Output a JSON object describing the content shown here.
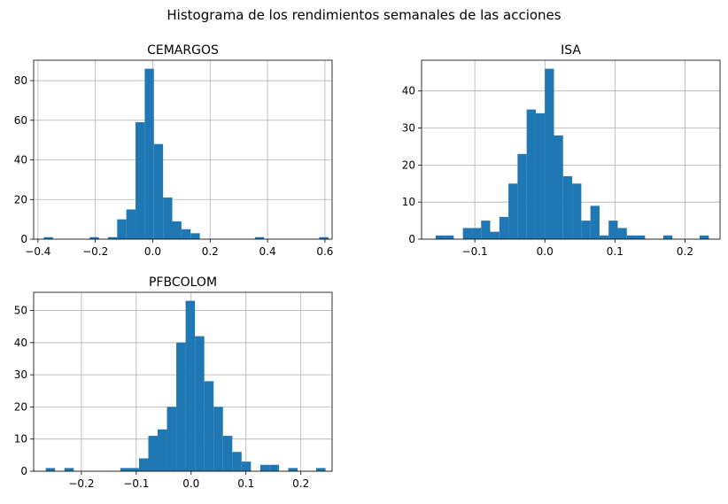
{
  "figure_title": "Histograma de los rendimientos semanales de las acciones",
  "bar_color": "#1f77b4",
  "grid_color": "#b0b0b0",
  "chart_data": [
    {
      "type": "bar",
      "title": "CEMARGOS",
      "grid": true,
      "xlim": [
        -0.415,
        0.625
      ],
      "ylim": [
        0,
        90.3
      ],
      "xticks": [
        -0.4,
        -0.2,
        0.0,
        0.2,
        0.4,
        0.6
      ],
      "xtick_labels": [
        "−0.4",
        "−0.2",
        "0.0",
        "0.2",
        "0.4",
        "0.6"
      ],
      "yticks": [
        0,
        20,
        40,
        60,
        80
      ],
      "ytick_labels": [
        "0",
        "20",
        "40",
        "60",
        "80"
      ],
      "bin_edges": [
        -0.38,
        -0.348,
        -0.316,
        -0.284,
        -0.252,
        -0.22,
        -0.188,
        -0.156,
        -0.124,
        -0.092,
        -0.06,
        -0.028,
        0.004,
        0.036,
        0.068,
        0.1,
        0.132,
        0.164,
        0.196,
        0.228,
        0.26,
        0.292,
        0.324,
        0.356,
        0.388,
        0.42,
        0.452,
        0.484,
        0.516,
        0.548,
        0.58,
        0.612
      ],
      "values": [
        1,
        0,
        0,
        0,
        0,
        1,
        0,
        1,
        10,
        15,
        59,
        86,
        48,
        21,
        9,
        5,
        3,
        0,
        0,
        0,
        0,
        0,
        0,
        1,
        0,
        0,
        0,
        0,
        0,
        0,
        1
      ]
    },
    {
      "type": "bar",
      "title": "ISA",
      "grid": true,
      "xlim": [
        -0.176,
        0.25
      ],
      "ylim": [
        0,
        48.3
      ],
      "xticks": [
        -0.1,
        0.0,
        0.1,
        0.2
      ],
      "xtick_labels": [
        "−0.1",
        "0.0",
        "0.1",
        "0.2"
      ],
      "yticks": [
        0,
        10,
        20,
        30,
        40
      ],
      "ytick_labels": [
        "0",
        "10",
        "20",
        "30",
        "40"
      ],
      "bin_edges": [
        -0.156,
        -0.143,
        -0.13,
        -0.117,
        -0.104,
        -0.091,
        -0.078,
        -0.065,
        -0.052,
        -0.039,
        -0.026,
        -0.013,
        0.0,
        0.013,
        0.026,
        0.039,
        0.052,
        0.065,
        0.078,
        0.091,
        0.104,
        0.117,
        0.13,
        0.143,
        0.156,
        0.169,
        0.182,
        0.195,
        0.208,
        0.221,
        0.234
      ],
      "values": [
        1,
        1,
        0,
        3,
        3,
        5,
        2,
        6,
        15,
        23,
        35,
        34,
        46,
        28,
        17,
        15,
        5,
        9,
        1,
        5,
        3,
        1,
        1,
        0,
        0,
        1,
        0,
        0,
        0,
        1
      ]
    },
    {
      "type": "bar",
      "title": "PFBCOLOM",
      "grid": true,
      "xlim": [
        -0.287,
        0.257
      ],
      "ylim": [
        0,
        55.65
      ],
      "xticks": [
        -0.2,
        -0.1,
        0.0,
        0.1,
        0.2
      ],
      "xtick_labels": [
        "−0.2",
        "−0.1",
        "0.0",
        "0.1",
        "0.2"
      ],
      "yticks": [
        0,
        10,
        20,
        30,
        40,
        50
      ],
      "ytick_labels": [
        "0",
        "10",
        "20",
        "30",
        "40",
        "50"
      ],
      "bin_edges": [
        -0.265,
        -0.248,
        -0.231,
        -0.214,
        -0.197,
        -0.18,
        -0.163,
        -0.146,
        -0.129,
        -0.112,
        -0.095,
        -0.078,
        -0.061,
        -0.044,
        -0.027,
        -0.01,
        0.007,
        0.024,
        0.041,
        0.058,
        0.075,
        0.092,
        0.109,
        0.126,
        0.143,
        0.16,
        0.177,
        0.194,
        0.211,
        0.228,
        0.245
      ],
      "values": [
        1,
        0,
        1,
        0,
        0,
        0,
        0,
        0,
        1,
        1,
        4,
        11,
        13,
        20,
        40,
        53,
        42,
        28,
        20,
        11,
        6,
        3,
        0,
        2,
        2,
        0,
        1,
        0,
        0,
        1
      ]
    }
  ]
}
